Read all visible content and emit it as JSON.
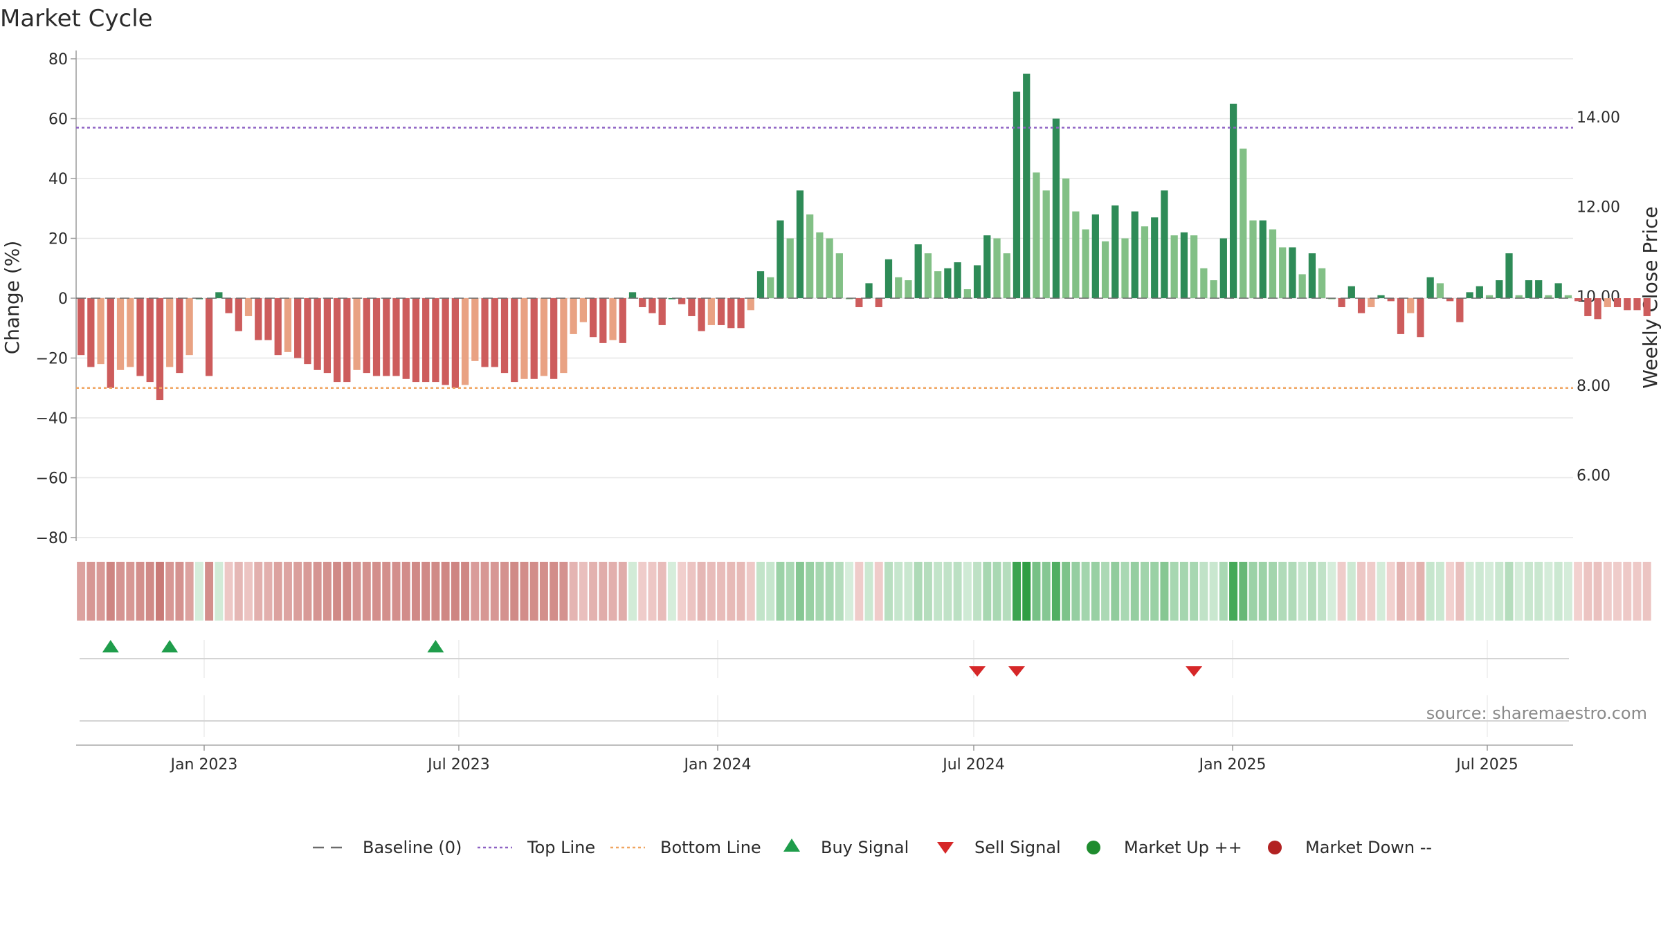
{
  "chart_data": {
    "type": "bar",
    "title": "Market Cycle",
    "ylabel": "Change (%)",
    "y2label": "Weekly Close Price",
    "ylim": [
      -80,
      80
    ],
    "yticks": [
      80,
      60,
      40,
      20,
      0,
      -20,
      -40,
      -60,
      -80
    ],
    "ytick_labels": [
      "80",
      "60",
      "40",
      "20",
      "0",
      "−20",
      "−40",
      "−60",
      "−80"
    ],
    "y2lim": [
      4.6,
      15.3
    ],
    "y2ticks": [
      14.0,
      12.0,
      10.0,
      8.0,
      6.0
    ],
    "y2tick_labels": [
      "14.00",
      "12.00",
      "10.00",
      "8.00",
      "6.00"
    ],
    "xlim": [
      "2022-10-02",
      "2025-08-31"
    ],
    "xticks": [
      {
        "date": "2023-01-01",
        "label": "Jan 2023"
      },
      {
        "date": "2023-07-01",
        "label": "Jul 2023"
      },
      {
        "date": "2024-01-01",
        "label": "Jan 2024"
      },
      {
        "date": "2024-07-01",
        "label": "Jul 2024"
      },
      {
        "date": "2025-01-01",
        "label": "Jan 2025"
      },
      {
        "date": "2025-07-01",
        "label": "Jul 2025"
      }
    ],
    "week_start": "2022-10-02",
    "week_step_days": 7,
    "values": [
      -19,
      -23,
      -22,
      -30,
      -24,
      -23,
      -26,
      -28,
      -34,
      -23,
      -25,
      -19,
      0,
      -26,
      2,
      -5,
      -11,
      -6,
      -14,
      -14,
      -19,
      -18,
      -20,
      -22,
      -24,
      -25,
      -28,
      -28,
      -24,
      -25,
      -26,
      -26,
      -26,
      -27,
      -28,
      -28,
      -28,
      -29,
      -30,
      -29,
      -21,
      -23,
      -23,
      -25,
      -28,
      -27,
      -27,
      -26,
      -27,
      -25,
      -12,
      -8,
      -13,
      -15,
      -14,
      -15,
      2,
      -3,
      -5,
      -9,
      0,
      -2,
      -6,
      -11,
      -9,
      -9,
      -10,
      -10,
      -4,
      9,
      7,
      26,
      20,
      36,
      28,
      22,
      20,
      15,
      0,
      -3,
      5,
      -3,
      13,
      7,
      6,
      18,
      15,
      9,
      10,
      12,
      3,
      11,
      21,
      20,
      15,
      69,
      75,
      42,
      36,
      60,
      40,
      29,
      23,
      28,
      19,
      31,
      20,
      29,
      24,
      27,
      36,
      21,
      22,
      21,
      10,
      6,
      20,
      65,
      50,
      26,
      26,
      23,
      17,
      17,
      8,
      15,
      10,
      0,
      -3,
      4,
      -5,
      -3,
      1,
      -1,
      -12,
      -5,
      -13,
      7,
      5,
      -1,
      -8,
      2,
      4,
      1,
      6,
      15,
      1,
      6,
      6,
      1,
      5,
      1,
      -1,
      -6,
      -7,
      -3,
      -3,
      -4,
      -4,
      -6
    ],
    "series": [
      {
        "name": "Baseline (0)",
        "style": "dashed",
        "color": "#6b6b6b",
        "value": 0
      },
      {
        "name": "Top Line",
        "style": "dotted",
        "color": "#8e62c4",
        "value": 57
      },
      {
        "name": "Bottom Line",
        "style": "dotted",
        "color": "#f0a560",
        "value": -30
      }
    ],
    "signals": {
      "buy": [
        "2022-10-23",
        "2022-12-04",
        "2023-06-11"
      ],
      "sell": [
        "2024-06-30",
        "2024-07-28",
        "2024-12-01"
      ]
    },
    "legend": [
      {
        "label": "Baseline (0)",
        "symbol": "dash",
        "color": "#6b6b6b"
      },
      {
        "label": "Top Line",
        "symbol": "dot",
        "color": "#8e62c4"
      },
      {
        "label": "Bottom Line",
        "symbol": "dot",
        "color": "#f0a560"
      },
      {
        "label": "Buy Signal",
        "symbol": "triangle-up",
        "color": "#1f9d4b"
      },
      {
        "label": "Sell Signal",
        "symbol": "triangle-down",
        "color": "#d62728"
      },
      {
        "label": "Market Up ++",
        "symbol": "circle",
        "color": "#1e8c2e"
      },
      {
        "label": "Market Down --",
        "symbol": "circle",
        "color": "#b22222"
      }
    ],
    "legend_position": "bottom",
    "grid": true,
    "colors": {
      "pos_strong": "#2e8b57",
      "pos_weak": "#82c086",
      "neg_strong": "#cd5c5c",
      "neg_weak": "#e9a283",
      "grid": "#e6e6e6"
    },
    "source": "source: sharemaestro.com"
  }
}
